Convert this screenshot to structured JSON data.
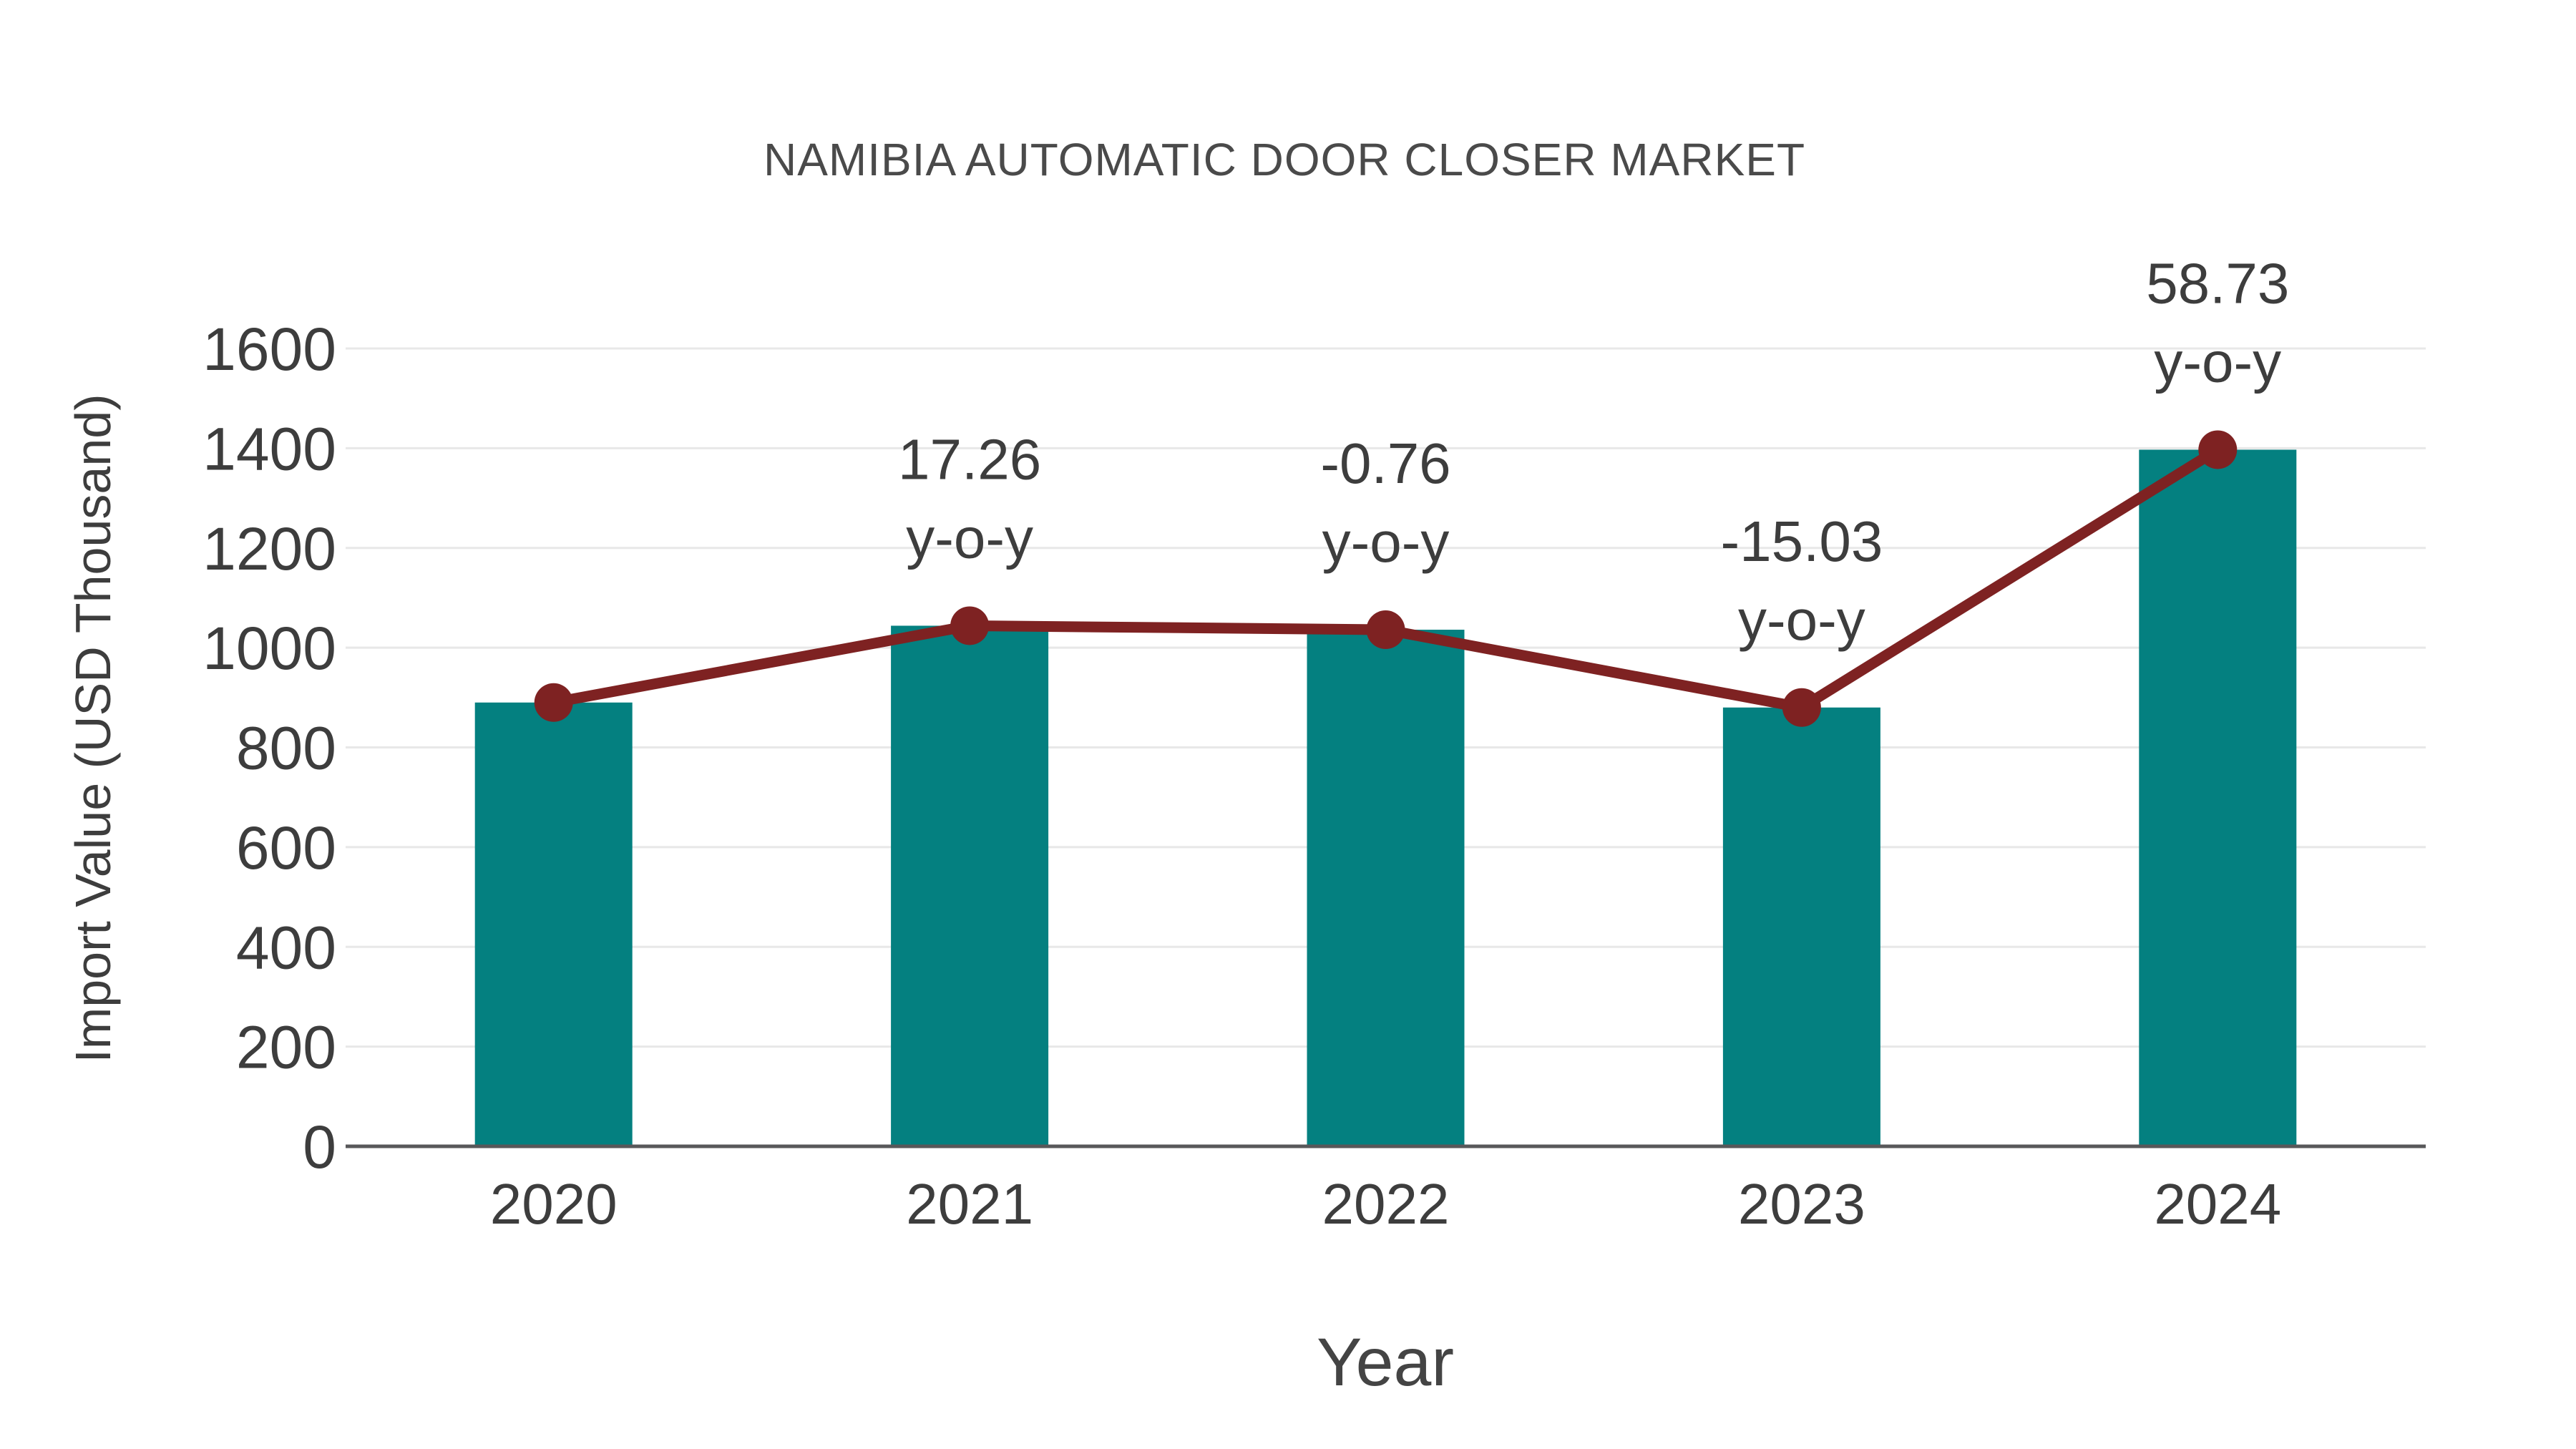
{
  "chart_data": {
    "type": "bar",
    "overlay": "line-with-markers",
    "title": "NAMIBIA AUTOMATIC DOOR CLOSER MARKET",
    "xlabel": "Year",
    "ylabel": "Import Value (USD Thousand)",
    "categories": [
      "2020",
      "2021",
      "2022",
      "2023",
      "2024"
    ],
    "values": [
      890,
      1044,
      1036,
      880,
      1397
    ],
    "line_values": [
      890,
      1044,
      1036,
      880,
      1397
    ],
    "yoy_annotations": [
      null,
      "17.26",
      "-0.76",
      "-15.03",
      "58.73"
    ],
    "yoy_suffix": "y-o-y",
    "ylim": [
      0,
      1600
    ],
    "yticks": [
      0,
      200,
      400,
      600,
      800,
      1000,
      1200,
      1400,
      1600
    ],
    "grid": "horizontal",
    "legend": "none",
    "colors": {
      "bar": "#048080",
      "line": "#7e2222",
      "marker": "#7e2222",
      "grid": "#e8e8e8",
      "axis_line": "#58585a",
      "tick_text": "#3d3d3d",
      "annotation_text": "#3d3d3d",
      "title_text": "#4a4a4a",
      "background": "#ffffff"
    }
  }
}
